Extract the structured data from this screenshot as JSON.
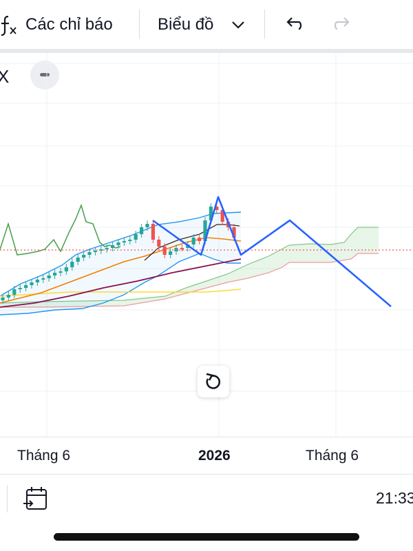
{
  "toolbar": {
    "indicators_label": "Các chỉ báo",
    "chart_type_label": "Biểu đồ"
  },
  "legend": {
    "symbol_fragment": "X"
  },
  "time_axis": {
    "ticks": [
      "Tháng 6",
      "2026",
      "Tháng 6"
    ]
  },
  "bottom_bar": {
    "clock": "21:33"
  },
  "colors": {
    "candle_up": "#26a69a",
    "candle_down": "#ef5350",
    "bollinger": "#2196f3",
    "drawing": "#2962ff",
    "kumo_green": "#81c784",
    "kumo_red": "#ef9a9a",
    "chikou": "#43a047",
    "ma_orange": "#f57c00",
    "ma_maroon": "#880e4f",
    "ma_yellow": "#fdd835",
    "price_line": "#ef5350"
  },
  "chart_data": {
    "type": "candlestick",
    "candle_count": 41,
    "overlays": [
      "bollinger-bands",
      "ichimoku-cloud",
      "moving-averages",
      "price-line",
      "drawn-zigzag-pattern"
    ],
    "grid": true
  }
}
